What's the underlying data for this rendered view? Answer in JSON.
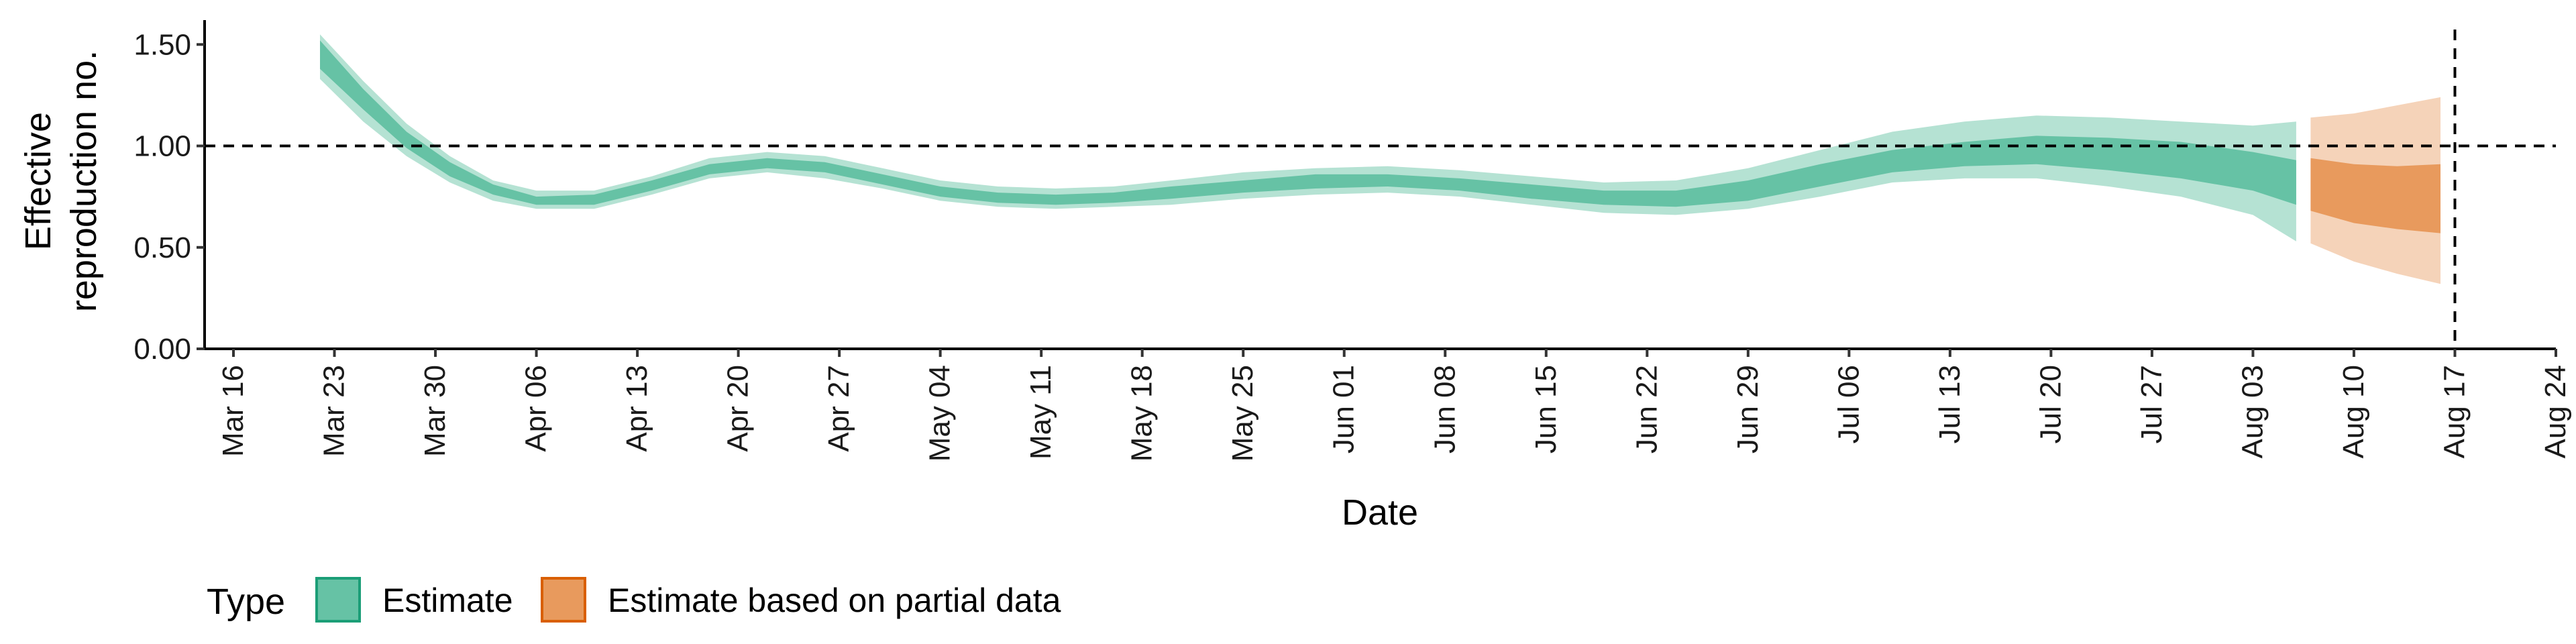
{
  "chart_data": {
    "type": "area",
    "title": "",
    "xlabel": "Date",
    "ylabel_lines": [
      "Effective",
      "reproduction no."
    ],
    "ylim": [
      0,
      1.62
    ],
    "y_ticks": [
      0.0,
      0.5,
      1.0,
      1.5
    ],
    "y_tick_labels": [
      "0.00",
      "0.50",
      "1.00",
      "1.50"
    ],
    "x_range": [
      "2020-03-14",
      "2020-08-24"
    ],
    "x_ticks": [
      "2020-03-16",
      "2020-03-23",
      "2020-03-30",
      "2020-04-06",
      "2020-04-13",
      "2020-04-20",
      "2020-04-27",
      "2020-05-04",
      "2020-05-11",
      "2020-05-18",
      "2020-05-25",
      "2020-06-01",
      "2020-06-08",
      "2020-06-15",
      "2020-06-22",
      "2020-06-29",
      "2020-07-06",
      "2020-07-13",
      "2020-07-20",
      "2020-07-27",
      "2020-08-03",
      "2020-08-10",
      "2020-08-17",
      "2020-08-24"
    ],
    "x_tick_labels": [
      "Mar 16",
      "Mar 23",
      "Mar 30",
      "Apr 06",
      "Apr 13",
      "Apr 20",
      "Apr 27",
      "May 04",
      "May 11",
      "May 18",
      "May 25",
      "Jun 01",
      "Jun 08",
      "Jun 15",
      "Jun 22",
      "Jun 29",
      "Jul 06",
      "Jul 13",
      "Jul 20",
      "Jul 27",
      "Aug 03",
      "Aug 10",
      "Aug 17",
      "Aug 24"
    ],
    "reference_lines": {
      "horizontal_y": 1.0,
      "vertical_x": "2020-08-17"
    },
    "legend": {
      "title": "Type",
      "position": "bottom-left",
      "items": [
        "Estimate",
        "Estimate based on partial data"
      ]
    },
    "series": [
      {
        "name": "Estimate",
        "color_inner": "#66c2a5",
        "color_outer": "#b5e2d3",
        "points": [
          [
            "2020-03-22",
            1.44,
            1.38,
            1.52,
            1.33,
            1.55
          ],
          [
            "2020-03-25",
            1.22,
            1.18,
            1.28,
            1.12,
            1.32
          ],
          [
            "2020-03-28",
            1.03,
            0.99,
            1.07,
            0.95,
            1.11
          ],
          [
            "2020-03-31",
            0.88,
            0.85,
            0.92,
            0.82,
            0.95
          ],
          [
            "2020-04-03",
            0.78,
            0.76,
            0.81,
            0.73,
            0.83
          ],
          [
            "2020-04-06",
            0.73,
            0.71,
            0.75,
            0.69,
            0.78
          ],
          [
            "2020-04-10",
            0.73,
            0.71,
            0.76,
            0.69,
            0.78
          ],
          [
            "2020-04-14",
            0.8,
            0.78,
            0.83,
            0.76,
            0.85
          ],
          [
            "2020-04-18",
            0.88,
            0.86,
            0.91,
            0.84,
            0.94
          ],
          [
            "2020-04-22",
            0.91,
            0.89,
            0.94,
            0.87,
            0.97
          ],
          [
            "2020-04-26",
            0.89,
            0.87,
            0.92,
            0.84,
            0.95
          ],
          [
            "2020-04-30",
            0.83,
            0.81,
            0.86,
            0.79,
            0.89
          ],
          [
            "2020-05-04",
            0.77,
            0.75,
            0.8,
            0.73,
            0.83
          ],
          [
            "2020-05-08",
            0.74,
            0.72,
            0.77,
            0.7,
            0.8
          ],
          [
            "2020-05-12",
            0.73,
            0.71,
            0.76,
            0.69,
            0.79
          ],
          [
            "2020-05-16",
            0.74,
            0.72,
            0.77,
            0.7,
            0.8
          ],
          [
            "2020-05-20",
            0.77,
            0.74,
            0.8,
            0.71,
            0.83
          ],
          [
            "2020-05-25",
            0.8,
            0.77,
            0.83,
            0.74,
            0.87
          ],
          [
            "2020-05-30",
            0.82,
            0.79,
            0.86,
            0.76,
            0.89
          ],
          [
            "2020-06-04",
            0.83,
            0.8,
            0.86,
            0.77,
            0.9
          ],
          [
            "2020-06-09",
            0.81,
            0.78,
            0.84,
            0.75,
            0.88
          ],
          [
            "2020-06-14",
            0.77,
            0.74,
            0.81,
            0.71,
            0.85
          ],
          [
            "2020-06-19",
            0.74,
            0.71,
            0.78,
            0.67,
            0.82
          ],
          [
            "2020-06-24",
            0.74,
            0.7,
            0.78,
            0.66,
            0.83
          ],
          [
            "2020-06-29",
            0.78,
            0.73,
            0.83,
            0.69,
            0.89
          ],
          [
            "2020-07-04",
            0.85,
            0.8,
            0.91,
            0.75,
            0.98
          ],
          [
            "2020-07-09",
            0.93,
            0.87,
            0.98,
            0.82,
            1.07
          ],
          [
            "2020-07-14",
            0.96,
            0.9,
            1.02,
            0.84,
            1.12
          ],
          [
            "2020-07-19",
            0.98,
            0.91,
            1.05,
            0.84,
            1.15
          ],
          [
            "2020-07-24",
            0.96,
            0.88,
            1.04,
            0.8,
            1.14
          ],
          [
            "2020-07-29",
            0.93,
            0.84,
            1.02,
            0.75,
            1.12
          ],
          [
            "2020-08-03",
            0.88,
            0.78,
            0.97,
            0.66,
            1.1
          ],
          [
            "2020-08-06",
            0.82,
            0.71,
            0.93,
            0.53,
            1.12
          ]
        ]
      },
      {
        "name": "Estimate based on partial data",
        "color_inner": "#e89a5d",
        "color_outer": "#f5d3b9",
        "points": [
          [
            "2020-08-07",
            0.81,
            0.68,
            0.94,
            0.52,
            1.14
          ],
          [
            "2020-08-10",
            0.77,
            0.62,
            0.91,
            0.43,
            1.16
          ],
          [
            "2020-08-13",
            0.75,
            0.59,
            0.9,
            0.37,
            1.2
          ],
          [
            "2020-08-16",
            0.74,
            0.57,
            0.91,
            0.32,
            1.24
          ]
        ]
      }
    ]
  }
}
